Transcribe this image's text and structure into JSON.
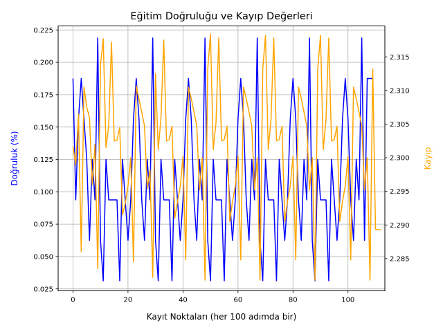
{
  "chart_data": {
    "type": "line",
    "title": "Eğitim Doğruluğu ve Kayıp Değerleri",
    "xlabel": "Kayıt Noktaları (her 100 adımda bir)",
    "ylabel_left": "Doğruluk (%)",
    "ylabel_right": "Kayıp",
    "xlim": [
      -5.4,
      113.4
    ],
    "ylim_left": [
      0.0235,
      0.2281
    ],
    "ylim_right": [
      2.2802,
      2.3196
    ],
    "x_ticks": [
      0,
      20,
      40,
      60,
      80,
      100
    ],
    "y_left_ticks": [
      0.025,
      0.05,
      0.075,
      0.1,
      0.125,
      0.15,
      0.175,
      0.2,
      0.225
    ],
    "y_left_tick_labels": [
      "0.025",
      "0.050",
      "0.075",
      "0.100",
      "0.125",
      "0.150",
      "0.175",
      "0.200",
      "0.225"
    ],
    "y_right_ticks": [
      2.285,
      2.29,
      2.295,
      2.3,
      2.305,
      2.31,
      2.315
    ],
    "y_right_tick_labels": [
      "2.285",
      "2.290",
      "2.295",
      "2.300",
      "2.305",
      "2.310",
      "2.315"
    ],
    "grid": true,
    "colors": {
      "accuracy": "#0000ff",
      "loss": "#ffa500",
      "grid": "#b0b0b0"
    },
    "series": [
      {
        "axis": "left",
        "color": "#0000ff",
        "values": [
          0.1875,
          0.09375,
          0.15625,
          0.1875,
          0.15625,
          0.125,
          0.0625,
          0.125,
          0.09375,
          0.21875,
          0.0625,
          0.03125,
          0.125,
          0.09375,
          0.09375,
          0.09375,
          0.09375,
          0.03125,
          0.125,
          0.09375,
          0.0625,
          0.09375,
          0.15625,
          0.1875,
          0.15625,
          0.09375,
          0.0625,
          0.125,
          0.09375,
          0.21875,
          0.0625,
          0.03125,
          0.125,
          0.09375,
          0.09375,
          0.09375,
          0.03125,
          0.125,
          0.09375,
          0.0625,
          0.09375,
          0.15625,
          0.1875,
          0.15625,
          0.09375,
          0.0625,
          0.125,
          0.09375,
          0.21875,
          0.0625,
          0.03125,
          0.125,
          0.09375,
          0.09375,
          0.09375,
          0.03125,
          0.125,
          0.09375,
          0.0625,
          0.09375,
          0.15625,
          0.1875,
          0.15625,
          0.09375,
          0.0625,
          0.125,
          0.09375,
          0.21875,
          0.0625,
          0.03125,
          0.125,
          0.09375,
          0.09375,
          0.09375,
          0.03125,
          0.125,
          0.09375,
          0.0625,
          0.09375,
          0.15625,
          0.1875,
          0.15625,
          0.09375,
          0.0625,
          0.125,
          0.09375,
          0.21875,
          0.0625,
          0.03125,
          0.125,
          0.09375,
          0.09375,
          0.09375,
          0.03125,
          0.125,
          0.09375,
          0.0625,
          0.09375,
          0.15625,
          0.1875,
          0.15625,
          0.09375,
          0.0625,
          0.125,
          0.09375,
          0.21875,
          0.0625,
          0.1875,
          0.1875,
          0.1875
        ]
      },
      {
        "axis": "right",
        "color": "#ffa500",
        "values": [
          2.3017,
          2.2989,
          2.3065,
          2.286,
          2.3105,
          2.3075,
          2.306,
          2.296,
          2.302,
          2.2835,
          2.3138,
          2.3177,
          2.3015,
          2.3048,
          2.3172,
          2.3025,
          2.3026,
          2.3045,
          2.2915,
          2.2932,
          2.2958,
          2.3,
          2.2845,
          2.3107,
          2.3087,
          2.3068,
          2.3047,
          2.2954,
          2.2982,
          2.2822,
          2.3125,
          2.3012,
          2.306,
          2.3175,
          2.3025,
          2.3027,
          2.3047,
          2.291,
          2.2935,
          2.2957,
          2.3002,
          2.2848,
          2.3105,
          2.3088,
          2.3068,
          2.3048,
          2.2952,
          2.3,
          2.2818,
          2.3132,
          2.3184,
          2.3012,
          2.3052,
          2.3178,
          2.3025,
          2.3027,
          2.3047,
          2.2905,
          2.2935,
          2.2957,
          2.3002,
          2.2848,
          2.3105,
          2.3088,
          2.3068,
          2.3047,
          2.2952,
          2.3,
          2.2818,
          2.3132,
          2.3182,
          2.3012,
          2.3057,
          2.3178,
          2.3025,
          2.3027,
          2.3047,
          2.2905,
          2.2935,
          2.2958,
          2.3002,
          2.2848,
          2.3105,
          2.3088,
          2.3068,
          2.3047,
          2.2952,
          2.3,
          2.2818,
          2.3132,
          2.3182,
          2.3012,
          2.3057,
          2.3178,
          2.3025,
          2.3027,
          2.3047,
          2.2905,
          2.2935,
          2.2958,
          2.3002,
          2.2848,
          2.3105,
          2.3088,
          2.3068,
          2.3047,
          2.2952,
          2.3,
          2.2818,
          2.3132,
          2.2893,
          2.2893,
          2.2893
        ]
      }
    ]
  }
}
